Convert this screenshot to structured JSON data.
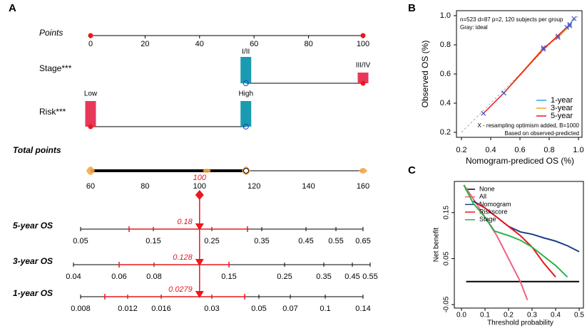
{
  "chart_data": [
    {
      "type": "nomogram",
      "panel": "A",
      "points": {
        "label": "Points",
        "xlim": [
          0,
          100
        ],
        "xticks": [
          0,
          20,
          40,
          60,
          80,
          100
        ]
      },
      "variables": [
        {
          "label": "Stage***",
          "levels": [
            "I/II",
            "III/IV"
          ],
          "values": [
            57,
            100
          ]
        },
        {
          "label": "Risk***",
          "levels": [
            "Low",
            "High"
          ],
          "values": [
            0,
            57
          ]
        }
      ],
      "total": {
        "label": "Total points",
        "xlim": [
          60,
          160
        ],
        "xticks": [
          60,
          80,
          100,
          120,
          140,
          160
        ],
        "value": 100
      },
      "outcomes": [
        {
          "label": "5-year OS",
          "xticks": [
            0.05,
            0.15,
            0.25,
            0.35,
            0.45,
            0.55,
            0.65
          ],
          "value": 0.18
        },
        {
          "label": "3-year OS",
          "xticks": [
            0.04,
            0.06,
            0.08,
            0.15,
            0.25,
            0.35,
            0.45,
            0.55
          ],
          "value": 0.128
        },
        {
          "label": "1-year OS",
          "xticks": [
            0.008,
            0.012,
            0.016,
            0.03,
            0.05,
            0.07,
            0.1,
            0.14
          ],
          "value": 0.0279
        }
      ]
    },
    {
      "type": "line",
      "panel": "B",
      "xlabel": "Nomogram-prediced OS (%)",
      "ylabel": "Observed OS (%)",
      "annotations": [
        "n=523 d=87 p=2, 120 subjects per group",
        "Gray: ideal",
        "X - resampling optimism added, B=1000",
        "Based on observed-predicted"
      ],
      "xlim": [
        0.2,
        1.0
      ],
      "ylim": [
        0.2,
        1.0
      ],
      "xticks": [
        0.2,
        0.4,
        0.6,
        0.8,
        {
          "value": 1.0,
          "label": "1.0"
        }
      ],
      "yticks": [
        0.2,
        0.4,
        0.6,
        0.8,
        {
          "value": 1.0,
          "label": "1.0"
        }
      ],
      "series": [
        {
          "name": "1-year",
          "color": "#29a9d8",
          "x": [
            0.86,
            0.94,
            0.97
          ],
          "values": [
            0.86,
            0.94,
            0.98
          ]
        },
        {
          "name": "3-year",
          "color": "#f5a623",
          "x": [
            0.49,
            0.76,
            0.86,
            0.94
          ],
          "values": [
            0.47,
            0.78,
            0.85,
            0.93
          ]
        },
        {
          "name": "5-year",
          "color": "#e8191f",
          "x": [
            0.35,
            0.49,
            0.76,
            0.92
          ],
          "values": [
            0.33,
            0.47,
            0.77,
            0.92
          ]
        }
      ]
    },
    {
      "type": "line",
      "panel": "C",
      "xlabel": "Threshold probability",
      "ylabel": "Net benefit",
      "xlim": [
        0,
        0.5
      ],
      "ylim": [
        -0.056,
        0.21
      ],
      "xticks": [
        {
          "value": 0,
          "label": "0.0"
        },
        0.1,
        0.2,
        0.3,
        0.4,
        0.5
      ],
      "yticks": [
        -0.05,
        0.05,
        0.15
      ],
      "series": [
        {
          "name": "None",
          "color": "#000000",
          "x": [
            0.02,
            0.5
          ],
          "values": [
            0,
            0
          ]
        },
        {
          "name": "All",
          "color": "#f06080",
          "x": [
            0.01,
            0.05,
            0.1,
            0.15,
            0.2,
            0.25,
            0.28
          ],
          "values": [
            0.21,
            0.18,
            0.14,
            0.1,
            0.05,
            0,
            -0.04
          ]
        },
        {
          "name": "Nomogram",
          "color": "#1a3f8a",
          "x": [
            0.05,
            0.1,
            0.15,
            0.2,
            0.25,
            0.3,
            0.35,
            0.4,
            0.45,
            0.5
          ],
          "values": [
            0.175,
            0.16,
            0.14,
            0.12,
            0.108,
            0.103,
            0.095,
            0.088,
            0.078,
            0.065
          ]
        },
        {
          "name": "Riskscore",
          "color": "#e8191f",
          "x": [
            0.07,
            0.1,
            0.15,
            0.2,
            0.25,
            0.3,
            0.35,
            0.4
          ],
          "values": [
            0.17,
            0.16,
            0.14,
            0.12,
            0.1,
            0.075,
            0.04,
            0.01
          ]
        },
        {
          "name": "Stage",
          "color": "#2db34a",
          "x": [
            0.01,
            0.05,
            0.1,
            0.14,
            0.2,
            0.25,
            0.3,
            0.35,
            0.4,
            0.45
          ],
          "values": [
            0.21,
            0.17,
            0.14,
            0.11,
            0.1,
            0.09,
            0.075,
            0.055,
            0.035,
            0.01
          ]
        }
      ]
    }
  ]
}
